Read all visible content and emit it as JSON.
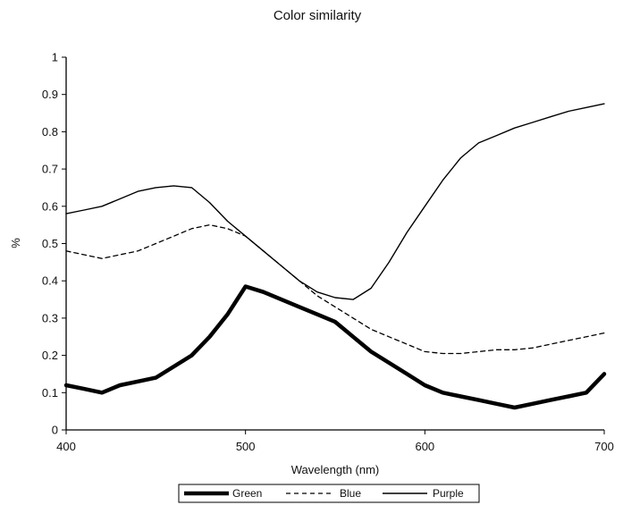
{
  "chart_data": {
    "type": "line",
    "title": "Color similarity",
    "xlabel": "Wavelength (nm)",
    "ylabel": "%",
    "xlim": [
      400,
      700
    ],
    "ylim": [
      0,
      1
    ],
    "x_ticks": [
      "400",
      "500",
      "600",
      "700"
    ],
    "y_ticks": [
      "0",
      "0.1",
      "0.2",
      "0.3",
      "0.4",
      "0.5",
      "0.6",
      "0.7",
      "0.8",
      "0.9",
      "1"
    ],
    "grid": false,
    "legend_position": "bottom",
    "series": [
      {
        "name": "Green",
        "style": "thick-solid",
        "color": "#000000",
        "x": [
          400,
          410,
          420,
          430,
          440,
          450,
          460,
          470,
          480,
          490,
          500,
          510,
          520,
          530,
          540,
          550,
          560,
          570,
          580,
          590,
          600,
          610,
          620,
          630,
          640,
          650,
          660,
          670,
          680,
          690,
          700
        ],
        "y": [
          0.12,
          0.11,
          0.1,
          0.12,
          0.13,
          0.14,
          0.17,
          0.2,
          0.25,
          0.31,
          0.385,
          0.37,
          0.35,
          0.33,
          0.31,
          0.29,
          0.25,
          0.21,
          0.18,
          0.15,
          0.12,
          0.1,
          0.09,
          0.08,
          0.07,
          0.06,
          0.07,
          0.08,
          0.09,
          0.1,
          0.15
        ]
      },
      {
        "name": "Blue",
        "style": "dashed",
        "color": "#000000",
        "x": [
          400,
          410,
          420,
          430,
          440,
          450,
          460,
          470,
          480,
          490,
          500,
          510,
          520,
          530,
          540,
          550,
          560,
          570,
          580,
          590,
          600,
          610,
          620,
          630,
          640,
          650,
          660,
          670,
          680,
          690,
          700
        ],
        "y": [
          0.48,
          0.47,
          0.46,
          0.47,
          0.48,
          0.5,
          0.52,
          0.54,
          0.55,
          0.54,
          0.52,
          0.48,
          0.44,
          0.4,
          0.36,
          0.33,
          0.3,
          0.27,
          0.25,
          0.23,
          0.21,
          0.205,
          0.205,
          0.21,
          0.215,
          0.215,
          0.22,
          0.23,
          0.24,
          0.25,
          0.26
        ]
      },
      {
        "name": "Purple",
        "style": "thin-solid",
        "color": "#000000",
        "x": [
          400,
          410,
          420,
          430,
          440,
          450,
          460,
          470,
          480,
          490,
          500,
          510,
          520,
          530,
          540,
          550,
          560,
          570,
          580,
          590,
          600,
          610,
          620,
          630,
          640,
          650,
          660,
          670,
          680,
          690,
          700
        ],
        "y": [
          0.58,
          0.59,
          0.6,
          0.62,
          0.64,
          0.65,
          0.655,
          0.65,
          0.61,
          0.56,
          0.52,
          0.48,
          0.44,
          0.4,
          0.37,
          0.355,
          0.35,
          0.38,
          0.45,
          0.53,
          0.6,
          0.67,
          0.73,
          0.77,
          0.79,
          0.81,
          0.825,
          0.84,
          0.855,
          0.865,
          0.875
        ]
      }
    ]
  }
}
